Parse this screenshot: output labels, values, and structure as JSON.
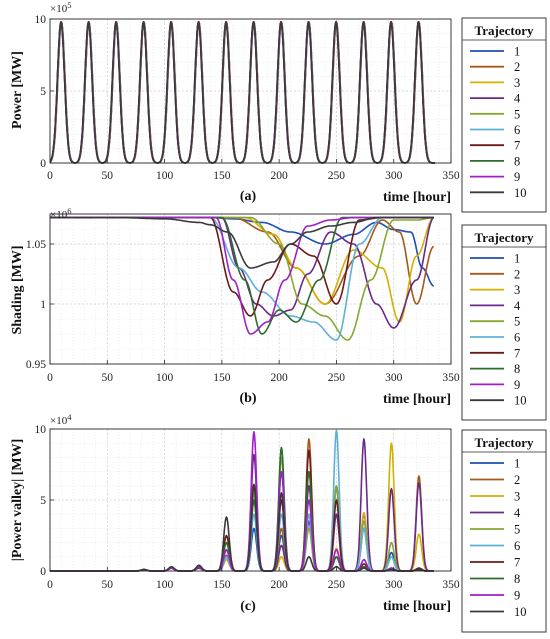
{
  "legend_title": "Trajectory",
  "series_names": [
    "1",
    "2",
    "3",
    "4",
    "5",
    "6",
    "7",
    "8",
    "9",
    "10"
  ],
  "series_colors": [
    "#1f4fb0",
    "#a55a1a",
    "#d4b000",
    "#6a2a8a",
    "#86a832",
    "#5fb0d8",
    "#6b1a1a",
    "#2e6b2e",
    "#a020c8",
    "#3a3a3a"
  ],
  "chart_data": [
    {
      "type": "line",
      "panel_label": "(a)",
      "ylabel": "Power [MW]",
      "xlabel": "time [hour]",
      "exponent": "5",
      "xlim": [
        0,
        350
      ],
      "ylim": [
        0,
        10
      ],
      "xticks": [
        0,
        50,
        100,
        150,
        200,
        250,
        300,
        350
      ],
      "yticks": [
        0,
        5,
        10
      ],
      "grid": true,
      "legend_position": "right",
      "daily_peak_hours": [
        10,
        34,
        58,
        82,
        106,
        130,
        154,
        178,
        202,
        226,
        250,
        274,
        298,
        322
      ],
      "daily_peak_values": [
        9.8,
        9.8,
        9.8,
        9.8,
        9.8,
        9.8,
        9.8,
        9.8,
        9.8,
        9.8,
        9.8,
        9.8,
        9.8,
        9.8
      ],
      "x_end": 336
    },
    {
      "type": "line",
      "panel_label": "(b)",
      "ylabel": "Shading [MW]",
      "xlabel": "time [hour]",
      "exponent": "6",
      "xlim": [
        0,
        350
      ],
      "ylim": [
        0.95,
        1.075
      ],
      "xticks": [
        0,
        50,
        100,
        150,
        200,
        250,
        300,
        350
      ],
      "yticks": [
        0.95,
        1,
        1.05
      ],
      "ytick_labels": [
        "0.95",
        "1",
        "1.05"
      ],
      "grid": true,
      "legend_position": "right",
      "baseline": 1.072,
      "series": [
        {
          "name": "1",
          "x": [
            0,
            140,
            160,
            185,
            210,
            240,
            265,
            285,
            300,
            315,
            325,
            335
          ],
          "y": [
            1.072,
            1.072,
            1.071,
            1.068,
            1.06,
            1.05,
            1.058,
            1.068,
            1.062,
            1.06,
            1.03,
            1.015
          ]
        },
        {
          "name": "2",
          "x": [
            0,
            160,
            190,
            215,
            240,
            270,
            290,
            305,
            320,
            335
          ],
          "y": [
            1.072,
            1.072,
            1.06,
            1.03,
            1.0,
            1.04,
            1.07,
            1.06,
            1.0,
            1.048
          ]
        },
        {
          "name": "3",
          "x": [
            0,
            170,
            195,
            215,
            240,
            265,
            290,
            305,
            320,
            335
          ],
          "y": [
            1.072,
            1.072,
            1.058,
            1.03,
            1.0,
            1.045,
            1.03,
            0.985,
            1.04,
            1.072
          ]
        },
        {
          "name": "4",
          "x": [
            0,
            150,
            165,
            180,
            195,
            210,
            225,
            245,
            265,
            285,
            300,
            320,
            335
          ],
          "y": [
            1.072,
            1.072,
            1.03,
            1.0,
            0.99,
            0.995,
            1.025,
            1.06,
            1.05,
            1.0,
            0.98,
            1.02,
            1.072
          ]
        },
        {
          "name": "5",
          "x": [
            0,
            175,
            200,
            220,
            240,
            260,
            280,
            300,
            320,
            335
          ],
          "y": [
            1.072,
            1.072,
            1.05,
            1.0,
            0.99,
            0.97,
            1.02,
            1.07,
            1.07,
            1.072
          ]
        },
        {
          "name": "6",
          "x": [
            0,
            140,
            165,
            185,
            210,
            230,
            250,
            270,
            290,
            310,
            335
          ],
          "y": [
            1.072,
            1.072,
            1.03,
            1.01,
            0.99,
            0.985,
            0.97,
            1.05,
            1.072,
            1.072,
            1.072
          ]
        },
        {
          "name": "7",
          "x": [
            0,
            140,
            160,
            175,
            190,
            210,
            230,
            250,
            270,
            290,
            335
          ],
          "y": [
            1.072,
            1.072,
            1.01,
            0.99,
            1.02,
            1.05,
            1.04,
            1.0,
            1.07,
            1.072,
            1.072
          ]
        },
        {
          "name": "8",
          "x": [
            0,
            150,
            170,
            185,
            200,
            215,
            235,
            255,
            275,
            295,
            335
          ],
          "y": [
            1.072,
            1.072,
            1.02,
            0.975,
            0.995,
            0.985,
            1.02,
            1.072,
            1.072,
            1.072,
            1.072
          ]
        },
        {
          "name": "9",
          "x": [
            0,
            145,
            160,
            175,
            190,
            205,
            225,
            245,
            265,
            285,
            335
          ],
          "y": [
            1.072,
            1.072,
            1.02,
            0.975,
            0.985,
            1.02,
            1.065,
            1.07,
            1.072,
            1.072,
            1.072
          ]
        },
        {
          "name": "10",
          "x": [
            0,
            60,
            100,
            130,
            140,
            155,
            175,
            195,
            210,
            225,
            245,
            265,
            285,
            335
          ],
          "y": [
            1.072,
            1.072,
            1.071,
            1.068,
            1.066,
            1.06,
            1.03,
            1.035,
            1.05,
            1.06,
            1.065,
            1.068,
            1.072,
            1.072
          ]
        }
      ]
    },
    {
      "type": "line",
      "panel_label": "(c)",
      "ylabel": "|Power valley| [MW]",
      "xlabel": "time [hour]",
      "exponent": "4",
      "xlim": [
        0,
        350
      ],
      "ylim": [
        0,
        10
      ],
      "xticks": [
        0,
        50,
        100,
        150,
        200,
        250,
        300,
        350
      ],
      "yticks": [
        0,
        5,
        10
      ],
      "grid": true,
      "legend_position": "right",
      "peak_hours": [
        82,
        106,
        130,
        154,
        178,
        202,
        226,
        250,
        274,
        298,
        322
      ],
      "series": [
        {
          "name": "1",
          "peaks": [
            0.1,
            0.2,
            0.3,
            1.0,
            3.0,
            2.5,
            3.5,
            6.0,
            4.0,
            1.3,
            0.2
          ]
        },
        {
          "name": "2",
          "peaks": [
            0.1,
            0.2,
            0.3,
            1.1,
            5.0,
            3.0,
            9.3,
            1.0,
            3.0,
            0.2,
            6.7
          ]
        },
        {
          "name": "3",
          "peaks": [
            0.1,
            0.2,
            0.3,
            0.8,
            5.0,
            1.0,
            4.0,
            1.6,
            4.1,
            9.0,
            2.6
          ]
        },
        {
          "name": "4",
          "peaks": [
            0.1,
            0.2,
            0.2,
            1.0,
            8.2,
            1.8,
            6.0,
            4.0,
            9.3,
            5.8,
            6.2
          ]
        },
        {
          "name": "5",
          "peaks": [
            0.1,
            0.2,
            0.3,
            1.5,
            5.5,
            8.0,
            3.0,
            6.0,
            3.5,
            2.0,
            0.2
          ]
        },
        {
          "name": "6",
          "peaks": [
            0.1,
            0.2,
            0.3,
            1.0,
            4.0,
            4.0,
            4.0,
            9.9,
            3.0,
            1.0,
            0.2
          ]
        },
        {
          "name": "7",
          "peaks": [
            0.1,
            0.2,
            0.3,
            2.5,
            6.1,
            5.0,
            8.5,
            5.0,
            0.5,
            0.2,
            0.2
          ]
        },
        {
          "name": "8",
          "peaks": [
            0.1,
            0.2,
            0.3,
            2.0,
            5.0,
            8.7,
            7.0,
            1.0,
            0.3,
            0.2,
            0.1
          ]
        },
        {
          "name": "9",
          "peaks": [
            0.1,
            0.2,
            0.3,
            1.5,
            9.8,
            7.0,
            5.0,
            1.5,
            0.8,
            0.2,
            0.1
          ]
        },
        {
          "name": "10",
          "peaks": [
            0.1,
            0.3,
            0.4,
            3.8,
            6.0,
            5.5,
            1.0,
            0.3,
            0.2,
            0.1,
            0.1
          ]
        }
      ]
    }
  ]
}
